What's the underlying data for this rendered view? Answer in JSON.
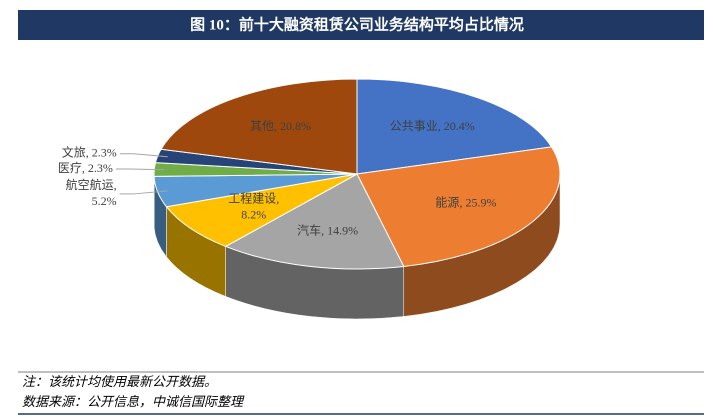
{
  "header": {
    "title": "图 10：前十大融资租赁公司业务结构平均占比情况"
  },
  "chart_data": {
    "type": "pie3d",
    "categories": [
      "公共事业",
      "能源",
      "汽车",
      "工程建设",
      "航空航运",
      "医疗",
      "文旅",
      "其他"
    ],
    "values": [
      20.4,
      25.9,
      14.9,
      8.2,
      5.2,
      2.3,
      2.3,
      20.8
    ],
    "value_labels": [
      "20.4%",
      "25.9%",
      "14.9%",
      "8.2%",
      "5.2%",
      "2.3%",
      "2.3%",
      "20.8%"
    ],
    "label_separator": ",",
    "colors": [
      "#4472c4",
      "#ed7d31",
      "#a5a5a5",
      "#ffc000",
      "#5b9bd5",
      "#70ad47",
      "#264478",
      "#9e480e"
    ]
  },
  "footer": {
    "note": "注：该统计均使用最新公开数据。",
    "source": "数据来源：公开信息，中诚信国际整理"
  }
}
